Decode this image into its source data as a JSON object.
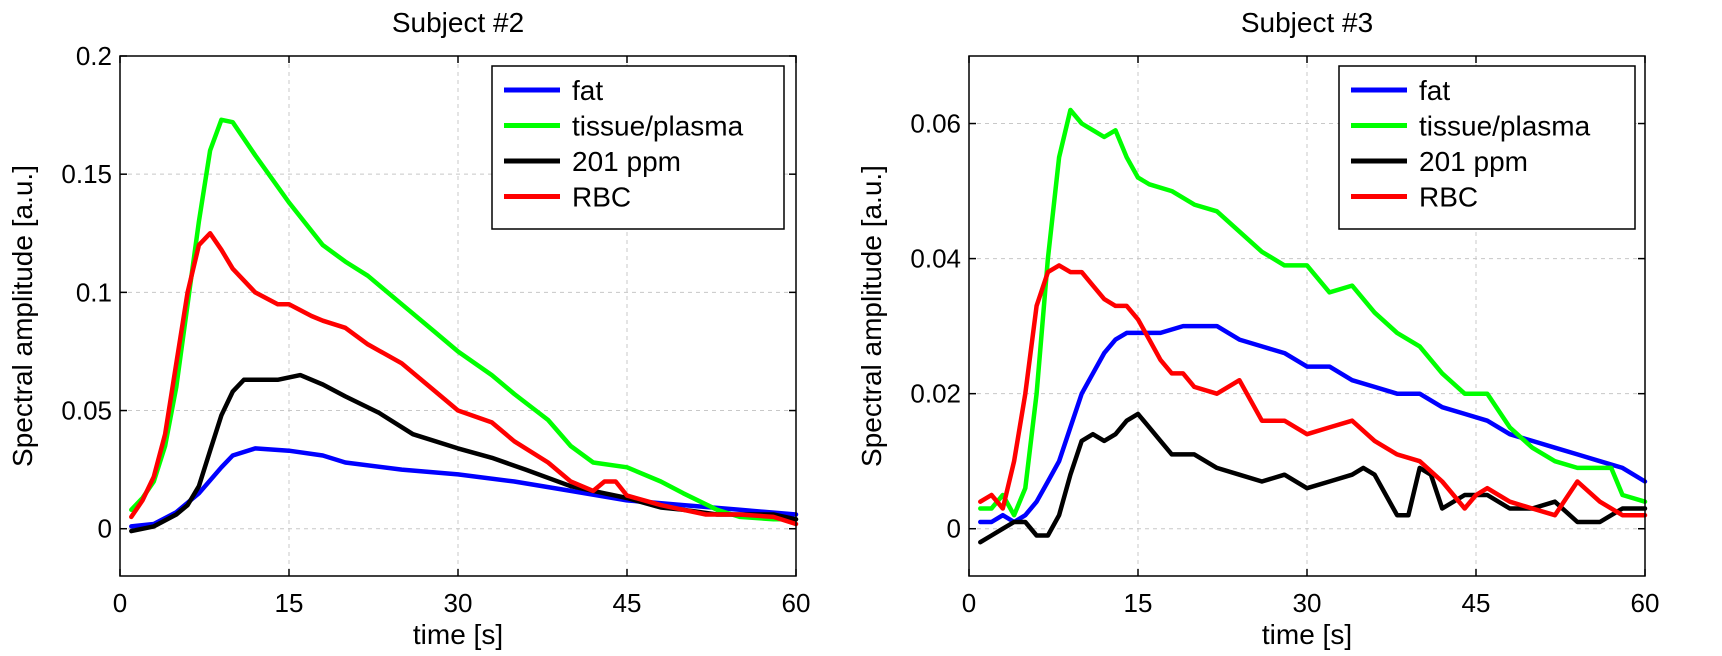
{
  "chart_data": [
    {
      "type": "line",
      "title": "Subject #2",
      "xlabel": "time [s]",
      "ylabel": "Spectral amplitude [a.u.]",
      "xlim": [
        0,
        60
      ],
      "ylim": [
        -0.02,
        0.2
      ],
      "xticks": [
        0,
        15,
        30,
        45,
        60
      ],
      "xtick_labels": [
        "0",
        "15",
        "30",
        "45",
        "60"
      ],
      "yticks": [
        0,
        0.05,
        0.1,
        0.15,
        0.2
      ],
      "ytick_labels": [
        "0",
        "0.05",
        "0.1",
        "0.15",
        "0.2"
      ],
      "grid": true,
      "legend_position": "top-right",
      "series": [
        {
          "name": "fat",
          "color": "#0000ff",
          "x": [
            1,
            3,
            5,
            7,
            9,
            10,
            12,
            15,
            18,
            20,
            25,
            30,
            35,
            40,
            45,
            50,
            55,
            60
          ],
          "y": [
            0.001,
            0.002,
            0.007,
            0.015,
            0.026,
            0.031,
            0.034,
            0.033,
            0.031,
            0.028,
            0.025,
            0.023,
            0.02,
            0.016,
            0.012,
            0.01,
            0.008,
            0.006
          ]
        },
        {
          "name": "tissue/plasma",
          "color": "#00ff00",
          "x": [
            1,
            2,
            3,
            4,
            5,
            6,
            7,
            8,
            9,
            10,
            12,
            15,
            18,
            20,
            22,
            25,
            28,
            30,
            33,
            35,
            38,
            40,
            42,
            45,
            48,
            50,
            53,
            55,
            58,
            60
          ],
          "y": [
            0.008,
            0.013,
            0.02,
            0.035,
            0.06,
            0.095,
            0.13,
            0.16,
            0.173,
            0.172,
            0.158,
            0.138,
            0.12,
            0.113,
            0.107,
            0.095,
            0.083,
            0.075,
            0.065,
            0.057,
            0.046,
            0.035,
            0.028,
            0.026,
            0.02,
            0.015,
            0.008,
            0.005,
            0.004,
            0.004
          ]
        },
        {
          "name": "201 ppm",
          "color": "#000000",
          "x": [
            1,
            3,
            5,
            6,
            7,
            8,
            9,
            10,
            11,
            12,
            14,
            16,
            18,
            20,
            23,
            26,
            30,
            33,
            36,
            40,
            43,
            45,
            48,
            50,
            53,
            55,
            58,
            60
          ],
          "y": [
            -0.001,
            0.001,
            0.006,
            0.01,
            0.018,
            0.033,
            0.048,
            0.058,
            0.063,
            0.063,
            0.063,
            0.065,
            0.061,
            0.056,
            0.049,
            0.04,
            0.034,
            0.03,
            0.025,
            0.018,
            0.015,
            0.013,
            0.009,
            0.008,
            0.006,
            0.006,
            0.006,
            0.004
          ]
        },
        {
          "name": "RBC",
          "color": "#ff0000",
          "x": [
            1,
            2,
            3,
            4,
            5,
            6,
            7,
            8,
            9,
            10,
            12,
            14,
            15,
            17,
            18,
            20,
            22,
            25,
            28,
            30,
            33,
            35,
            38,
            40,
            42,
            43,
            44,
            45,
            48,
            50,
            52,
            55,
            58,
            60
          ],
          "y": [
            0.005,
            0.012,
            0.022,
            0.04,
            0.07,
            0.1,
            0.12,
            0.125,
            0.118,
            0.11,
            0.1,
            0.095,
            0.095,
            0.09,
            0.088,
            0.085,
            0.078,
            0.07,
            0.058,
            0.05,
            0.045,
            0.037,
            0.028,
            0.02,
            0.016,
            0.02,
            0.02,
            0.014,
            0.01,
            0.008,
            0.006,
            0.006,
            0.005,
            0.002
          ]
        }
      ]
    },
    {
      "type": "line",
      "title": "Subject #3",
      "xlabel": "time [s]",
      "ylabel": "Spectral amplitude [a.u.]",
      "xlim": [
        0,
        60
      ],
      "ylim": [
        -0.007,
        0.07
      ],
      "xticks": [
        0,
        15,
        30,
        45,
        60
      ],
      "xtick_labels": [
        "0",
        "15",
        "30",
        "45",
        "60"
      ],
      "yticks": [
        0,
        0.02,
        0.04,
        0.06
      ],
      "ytick_labels": [
        "0",
        "0.02",
        "0.04",
        "0.06"
      ],
      "grid": true,
      "legend_position": "top-right",
      "series": [
        {
          "name": "fat",
          "color": "#0000ff",
          "x": [
            1,
            2,
            3,
            4,
            5,
            6,
            7,
            8,
            9,
            10,
            11,
            12,
            13,
            14,
            15,
            17,
            19,
            21,
            22,
            24,
            26,
            28,
            30,
            32,
            34,
            36,
            38,
            40,
            42,
            44,
            46,
            48,
            50,
            52,
            54,
            56,
            58,
            60
          ],
          "y": [
            0.001,
            0.001,
            0.002,
            0.001,
            0.002,
            0.004,
            0.007,
            0.01,
            0.015,
            0.02,
            0.023,
            0.026,
            0.028,
            0.029,
            0.029,
            0.029,
            0.03,
            0.03,
            0.03,
            0.028,
            0.027,
            0.026,
            0.024,
            0.024,
            0.022,
            0.021,
            0.02,
            0.02,
            0.018,
            0.017,
            0.016,
            0.014,
            0.013,
            0.012,
            0.011,
            0.01,
            0.009,
            0.007
          ]
        },
        {
          "name": "tissue/plasma",
          "color": "#00ff00",
          "x": [
            1,
            2,
            3,
            4,
            5,
            6,
            7,
            8,
            9,
            10,
            12,
            13,
            14,
            15,
            16,
            18,
            20,
            22,
            24,
            26,
            28,
            30,
            32,
            34,
            36,
            38,
            40,
            42,
            44,
            46,
            48,
            50,
            52,
            54,
            56,
            57,
            58,
            60
          ],
          "y": [
            0.003,
            0.003,
            0.005,
            0.002,
            0.006,
            0.02,
            0.04,
            0.055,
            0.062,
            0.06,
            0.058,
            0.059,
            0.055,
            0.052,
            0.051,
            0.05,
            0.048,
            0.047,
            0.044,
            0.041,
            0.039,
            0.039,
            0.035,
            0.036,
            0.032,
            0.029,
            0.027,
            0.023,
            0.02,
            0.02,
            0.015,
            0.012,
            0.01,
            0.009,
            0.009,
            0.009,
            0.005,
            0.004
          ]
        },
        {
          "name": "201 ppm",
          "color": "#000000",
          "x": [
            1,
            2,
            3,
            4,
            5,
            6,
            7,
            8,
            9,
            10,
            11,
            12,
            13,
            14,
            15,
            16,
            17,
            18,
            20,
            22,
            24,
            26,
            28,
            30,
            32,
            34,
            35,
            36,
            38,
            39,
            40,
            41,
            42,
            44,
            46,
            48,
            50,
            52,
            54,
            56,
            58,
            60
          ],
          "y": [
            -0.002,
            -0.001,
            0.0,
            0.001,
            0.001,
            -0.001,
            -0.001,
            0.002,
            0.008,
            0.013,
            0.014,
            0.013,
            0.014,
            0.016,
            0.017,
            0.015,
            0.013,
            0.011,
            0.011,
            0.009,
            0.008,
            0.007,
            0.008,
            0.006,
            0.007,
            0.008,
            0.009,
            0.008,
            0.002,
            0.002,
            0.009,
            0.008,
            0.003,
            0.005,
            0.005,
            0.003,
            0.003,
            0.004,
            0.001,
            0.001,
            0.003,
            0.003
          ]
        },
        {
          "name": "RBC",
          "color": "#ff0000",
          "x": [
            1,
            2,
            3,
            4,
            5,
            6,
            7,
            8,
            9,
            10,
            11,
            12,
            13,
            14,
            15,
            16,
            17,
            18,
            19,
            20,
            22,
            24,
            26,
            28,
            30,
            32,
            34,
            36,
            38,
            40,
            42,
            44,
            45,
            46,
            48,
            50,
            52,
            54,
            56,
            58,
            60
          ],
          "y": [
            0.004,
            0.005,
            0.003,
            0.01,
            0.02,
            0.033,
            0.038,
            0.039,
            0.038,
            0.038,
            0.036,
            0.034,
            0.033,
            0.033,
            0.031,
            0.028,
            0.025,
            0.023,
            0.023,
            0.021,
            0.02,
            0.022,
            0.016,
            0.016,
            0.014,
            0.015,
            0.016,
            0.013,
            0.011,
            0.01,
            0.007,
            0.003,
            0.005,
            0.006,
            0.004,
            0.003,
            0.002,
            0.007,
            0.004,
            0.002,
            0.002
          ]
        }
      ]
    }
  ]
}
